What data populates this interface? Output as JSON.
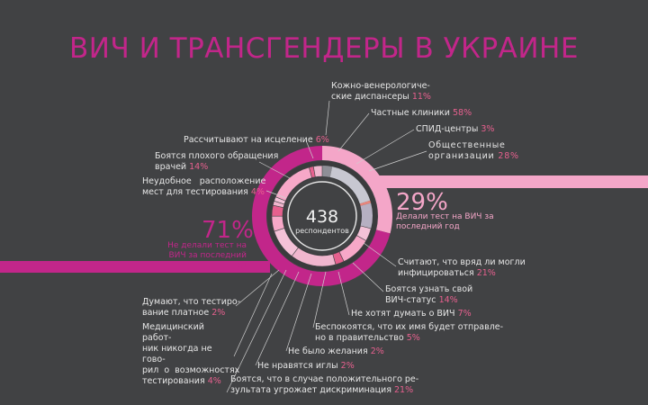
{
  "title": "ВИЧ И ТРАНСГЕНДЕРЫ В УКРАИНЕ",
  "center": {
    "value": "438",
    "label": "респондентов"
  },
  "left_block": {
    "percent": "71%",
    "text_line1": "Не делали тест на",
    "text_line2": "ВИЧ за последний год",
    "value": 71
  },
  "right_block": {
    "percent": "29%",
    "text_line1": "Делали тест на ВИЧ за",
    "text_line2": "последний год",
    "value": 29
  },
  "colors": {
    "background": "#414244",
    "accent_magenta": "#c2268a",
    "accent_pink": "#e6608e",
    "light_pink": "#f4a6c8",
    "grey": "#8e8e96",
    "salmon": "#e8867c"
  },
  "notes": [
    {
      "id": "kvd",
      "lines": [
        "Кожно-венерологиче-",
        "ские диспансеры"
      ],
      "value": "11%"
    },
    {
      "id": "private",
      "lines": [
        "Частные клиники"
      ],
      "value": "58%"
    },
    {
      "id": "aids",
      "lines": [
        "СПИД-центры"
      ],
      "value": "3%"
    },
    {
      "id": "ngo",
      "lines": [
        "Общественные",
        "организации"
      ],
      "value": "28%"
    },
    {
      "id": "healing",
      "lines": [
        "Рассчитывают на исцеление"
      ],
      "value": "6%"
    },
    {
      "id": "bad-treatment",
      "lines": [
        "Боятся плохого обращения",
        "врачей"
      ],
      "value": "14%"
    },
    {
      "id": "location",
      "lines": [
        "Неудобное   расположение",
        "мест для тестирования"
      ],
      "value": "4%"
    },
    {
      "id": "unlikely",
      "lines": [
        "Считают, что вряд ли могли",
        "инфицироваться"
      ],
      "value": "21%"
    },
    {
      "id": "status",
      "lines": [
        "Боятся узнать свой",
        "ВИЧ-статус"
      ],
      "value": "14%"
    },
    {
      "id": "not-think",
      "lines": [
        "Не хотят думать о ВИЧ"
      ],
      "value": "7%"
    },
    {
      "id": "government",
      "lines": [
        "Беспокоятся, что их имя будет отправле-",
        "но в правительство"
      ],
      "value": "5%"
    },
    {
      "id": "no-desire",
      "lines": [
        "Не было желания"
      ],
      "value": "2%"
    },
    {
      "id": "needles",
      "lines": [
        "Не нравятся иглы"
      ],
      "value": "2%"
    },
    {
      "id": "discrimination",
      "lines": [
        "Боятся, что в случае положительного ре-",
        "зультата угрожает дискриминация"
      ],
      "value": "21%"
    },
    {
      "id": "paid",
      "lines": [
        "Думают, что тестиро-",
        "вание платное"
      ],
      "value": "2%"
    },
    {
      "id": "never-told",
      "lines": [
        "Медицинский работ-",
        "ник никогда не гово-",
        "рил  о  возможностях",
        "тестирования"
      ],
      "value": "4%"
    }
  ],
  "chart_data": {
    "type": "pie",
    "title": "ВИЧ И ТРАНСГЕНДЕРЫ В УКРАИНЕ",
    "total_respondents": 438,
    "outer_ring": {
      "categories": [
        "Не делали тест на ВИЧ за последний год",
        "Делали тест на ВИЧ за последний год"
      ],
      "values": [
        71,
        29
      ]
    },
    "tested_where": {
      "categories": [
        "Кожно-венерологические диспансеры",
        "Частные клиники",
        "СПИД-центры",
        "Общественные организации"
      ],
      "values": [
        11,
        58,
        3,
        28
      ]
    },
    "reasons_not_tested": {
      "categories": [
        "Рассчитывают на исцеление",
        "Боятся плохого обращения врачей",
        "Неудобное расположение мест для тестирования",
        "Считают, что вряд ли могли инфицироваться",
        "Боятся узнать свой ВИЧ-статус",
        "Не хотят думать о ВИЧ",
        "Беспокоятся, что их имя будет отправлено в правительство",
        "Не было желания",
        "Не нравятся иглы",
        "Боятся, что в случае положительного результата угрожает дискриминация",
        "Думают, что тестирование платное",
        "Медицинский работник никогда не говорил о возможностях тестирования"
      ],
      "values": [
        6,
        14,
        4,
        21,
        14,
        7,
        5,
        2,
        2,
        21,
        2,
        4
      ]
    }
  }
}
